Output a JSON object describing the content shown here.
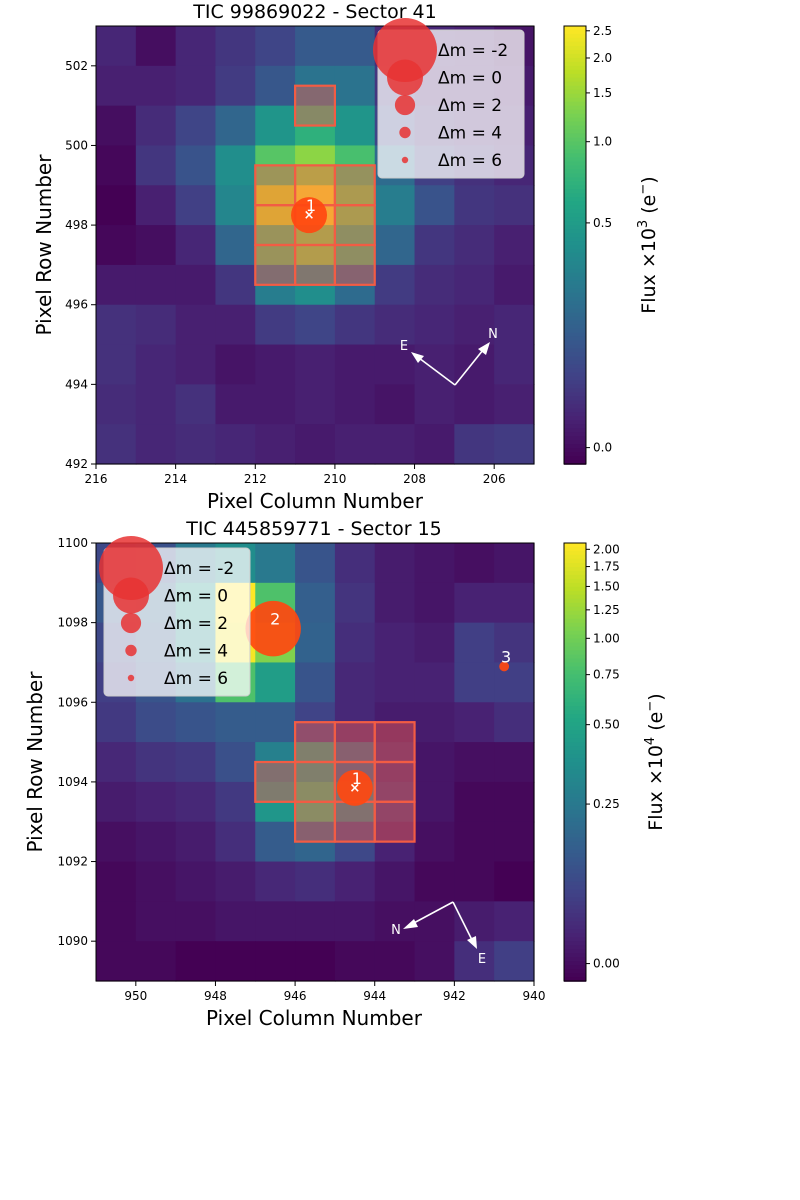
{
  "chart_data": [
    {
      "type": "heatmap",
      "title": "TIC 99869022 - Sector 41",
      "xlabel": "Pixel Column Number",
      "ylabel": "Pixel Row Number",
      "xlim": [
        216,
        205
      ],
      "ylim": [
        492,
        503
      ],
      "x_ticks": [
        216,
        214,
        212,
        210,
        208,
        206
      ],
      "y_ticks": [
        492,
        494,
        496,
        498,
        500,
        502
      ],
      "colorbar": {
        "label": "Flux ×10",
        "exponent": "3",
        "unit": " (e",
        "unit_sup": "−",
        "unit_close": ")",
        "ticks": [
          "0.0",
          "0.5",
          "1.0",
          "1.5",
          "2.0",
          "2.5"
        ],
        "tick_values": [
          0.0,
          0.5,
          1.0,
          1.5,
          2.0,
          2.5
        ],
        "range": [
          -0.02,
          2.6
        ],
        "colormap": "viridis"
      },
      "grid": {
        "col_start": 216,
        "row_top": 503,
        "values": [
          [
            0.04,
            0.0,
            0.04,
            0.07,
            0.1,
            0.16,
            0.16,
            0.05,
            0.04,
            0.03,
            0.01
          ],
          [
            0.03,
            0.03,
            0.04,
            0.08,
            0.15,
            0.25,
            0.25,
            0.07,
            0.03,
            0.03,
            0.02
          ],
          [
            0.0,
            0.05,
            0.1,
            0.2,
            0.45,
            0.7,
            0.45,
            0.1,
            0.05,
            0.04,
            0.03
          ],
          [
            -0.01,
            0.07,
            0.14,
            0.4,
            1.0,
            1.4,
            0.9,
            0.22,
            0.09,
            0.06,
            0.04
          ],
          [
            -0.02,
            0.03,
            0.09,
            0.35,
            2.0,
            2.5,
            1.2,
            0.3,
            0.14,
            0.07,
            0.06
          ],
          [
            -0.01,
            0.0,
            0.04,
            0.2,
            0.95,
            1.3,
            0.8,
            0.2,
            0.07,
            0.05,
            0.03
          ],
          [
            0.02,
            0.02,
            0.02,
            0.07,
            0.3,
            0.4,
            0.22,
            0.08,
            0.05,
            0.04,
            0.02
          ],
          [
            0.06,
            0.05,
            0.03,
            0.03,
            0.08,
            0.1,
            0.07,
            0.05,
            0.04,
            0.03,
            0.04
          ],
          [
            0.06,
            0.04,
            0.03,
            0.01,
            0.02,
            0.03,
            0.02,
            0.02,
            0.03,
            0.02,
            0.04
          ],
          [
            0.05,
            0.04,
            0.06,
            0.02,
            0.02,
            0.03,
            0.02,
            0.01,
            0.03,
            0.02,
            0.03
          ],
          [
            0.06,
            0.04,
            0.05,
            0.04,
            0.03,
            0.02,
            0.03,
            0.03,
            0.02,
            0.07,
            0.08
          ]
        ]
      },
      "aperture": [
        [
          210.5,
          501
        ],
        [
          211.5,
          499
        ],
        [
          210.5,
          499
        ],
        [
          209.5,
          499
        ],
        [
          211.5,
          498
        ],
        [
          210.5,
          498
        ],
        [
          209.5,
          498
        ],
        [
          211.5,
          497
        ],
        [
          210.5,
          497
        ],
        [
          209.5,
          497
        ]
      ],
      "stars": [
        {
          "label": "1",
          "col": 210.65,
          "row": 498.25,
          "dmag": 0,
          "target": true
        }
      ],
      "compass": {
        "N": "N",
        "E": "E"
      },
      "legend": {
        "placement": "top-right",
        "entries": [
          {
            "label": "Δm =  -2",
            "dmag": -2
          },
          {
            "label": "Δm =  0",
            "dmag": 0
          },
          {
            "label": "Δm =  2",
            "dmag": 2
          },
          {
            "label": "Δm =  4",
            "dmag": 4
          },
          {
            "label": "Δm =  6",
            "dmag": 6
          }
        ]
      }
    },
    {
      "type": "heatmap",
      "title": "TIC 445859771 - Sector 15",
      "xlabel": "Pixel Column Number",
      "ylabel": "Pixel Row Number",
      "xlim": [
        951,
        940
      ],
      "ylim": [
        1089,
        1100
      ],
      "x_ticks": [
        950,
        948,
        946,
        944,
        942,
        940
      ],
      "y_ticks": [
        1090,
        1092,
        1094,
        1096,
        1098,
        1100
      ],
      "colorbar": {
        "label": "Flux ×10",
        "exponent": "4",
        "unit": " (e",
        "unit_sup": "−",
        "unit_close": ")",
        "ticks": [
          "0.00",
          "0.25",
          "0.50",
          "0.75",
          "1.00",
          "1.25",
          "1.50",
          "1.75",
          "2.00"
        ],
        "tick_values": [
          0.0,
          0.25,
          0.5,
          0.75,
          1.0,
          1.25,
          1.5,
          1.75,
          2.0
        ],
        "range": [
          -0.02,
          2.1
        ],
        "colormap": "viridis"
      },
      "grid": {
        "col_start": 951,
        "row_top": 1100,
        "values": [
          [
            0.1,
            0.12,
            0.25,
            0.35,
            0.25,
            0.13,
            0.05,
            0.02,
            0.01,
            0.0,
            0.01
          ],
          [
            0.14,
            0.18,
            0.4,
            2.1,
            0.8,
            0.16,
            0.06,
            0.02,
            0.01,
            0.03,
            0.03
          ],
          [
            0.1,
            0.15,
            0.35,
            2.0,
            1.1,
            0.17,
            0.05,
            0.03,
            0.02,
            0.08,
            0.06
          ],
          [
            0.08,
            0.13,
            0.22,
            0.8,
            0.45,
            0.13,
            0.04,
            0.03,
            0.03,
            0.08,
            0.08
          ],
          [
            0.07,
            0.11,
            0.13,
            0.15,
            0.15,
            0.09,
            0.04,
            0.02,
            0.02,
            0.03,
            0.05
          ],
          [
            0.04,
            0.06,
            0.07,
            0.12,
            0.28,
            0.45,
            0.18,
            0.04,
            0.01,
            0.0,
            0.0
          ],
          [
            0.02,
            0.03,
            0.04,
            0.07,
            0.4,
            0.65,
            0.3,
            0.06,
            0.01,
            -0.01,
            -0.01
          ],
          [
            0.0,
            0.01,
            0.02,
            0.05,
            0.15,
            0.18,
            0.1,
            0.03,
            0.0,
            -0.01,
            -0.01
          ],
          [
            -0.01,
            0.0,
            0.01,
            0.02,
            0.04,
            0.05,
            0.03,
            0.01,
            -0.01,
            -0.01,
            -0.02
          ],
          [
            -0.01,
            0.0,
            0.0,
            0.01,
            0.01,
            0.01,
            0.01,
            0.0,
            0.0,
            0.02,
            0.03
          ],
          [
            -0.01,
            -0.01,
            -0.02,
            -0.02,
            -0.02,
            -0.02,
            -0.01,
            -0.01,
            0.0,
            0.05,
            0.08
          ]
        ]
      },
      "aperture": [
        [
          945.5,
          1095
        ],
        [
          944.5,
          1095
        ],
        [
          943.5,
          1095
        ],
        [
          946.5,
          1094
        ],
        [
          945.5,
          1094
        ],
        [
          944.5,
          1094
        ],
        [
          943.5,
          1094
        ],
        [
          945.5,
          1093
        ],
        [
          944.5,
          1093
        ],
        [
          943.5,
          1093
        ]
      ],
      "stars": [
        {
          "label": "1",
          "col": 944.5,
          "row": 1093.85,
          "dmag": 0,
          "target": true
        },
        {
          "label": "2",
          "col": 946.55,
          "row": 1097.85,
          "dmag": -1.5,
          "target": false
        },
        {
          "label": "3",
          "col": 940.75,
          "row": 1096.9,
          "dmag": 4.5,
          "target": false
        }
      ],
      "compass": {
        "N": "N",
        "E": "E"
      },
      "legend": {
        "placement": "top-left",
        "entries": [
          {
            "label": "Δm =  -2",
            "dmag": -2
          },
          {
            "label": "Δm =  0",
            "dmag": 0
          },
          {
            "label": "Δm =  2",
            "dmag": 2
          },
          {
            "label": "Δm =  4",
            "dmag": 4
          },
          {
            "label": "Δm =  6",
            "dmag": 6
          }
        ]
      }
    }
  ]
}
